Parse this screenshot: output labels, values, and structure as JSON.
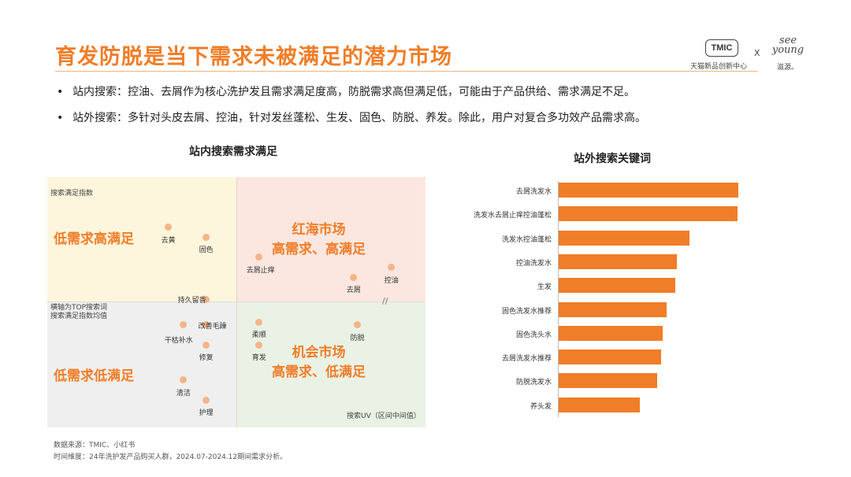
{
  "header": {
    "title": "育发防脱是当下需求未被满足的潜力市场",
    "logo_tmic": "TMIC",
    "logo_tmic_sub": "天猫新品创新中心",
    "logo_x": "X",
    "logo_seeyoung": "see young",
    "logo_seeyoung_sub": "滋源。"
  },
  "bullets": [
    "站内搜索：控油、去屑作为核心洗护发且需求满足度高，防脱需求高但满足低，可能由于产品供给、需求满足不足。",
    "站外搜索：多针对头皮去屑、控油，针对发丝蓬松、生发、固色、防脱、养发。除此，用户对复合多功效产品需求高。"
  ],
  "bullet_marker": "•",
  "colors": {
    "accent": "#f07d28",
    "point": "#f5b588",
    "q_top_left": "#fdf6dc",
    "q_top_right": "#fbe7df",
    "q_bottom_left": "#efefef",
    "q_bottom_right": "#e9f2e4"
  },
  "chart_data": [
    {
      "type": "scatter",
      "title": "站内搜索需求满足",
      "ylabel": "搜索满足指数",
      "xlabel": "搜索UV（区间中间值）",
      "note": "横轴为TOP搜索词\n搜索满足指数均值",
      "break_marker": "//",
      "quadrants": {
        "top_left": "低需求高满足",
        "top_right": "红海市场\n高需求、高满足",
        "bottom_left": "低需求低满足",
        "bottom_right": "机会市场\n高需求、低满足"
      },
      "points": [
        {
          "label": "去黄",
          "x": 0.32,
          "y": 0.8
        },
        {
          "label": "固色",
          "x": 0.42,
          "y": 0.76
        },
        {
          "label": "去屑止痒",
          "x": 0.56,
          "y": 0.68
        },
        {
          "label": "控油",
          "x": 0.91,
          "y": 0.64
        },
        {
          "label": "去屑",
          "x": 0.81,
          "y": 0.6
        },
        {
          "label": "持久留香",
          "x": 0.42,
          "y": 0.51
        },
        {
          "label": "改善毛躁",
          "x": 0.42,
          "y": 0.41
        },
        {
          "label": "干枯补水",
          "x": 0.36,
          "y": 0.41
        },
        {
          "label": "修复",
          "x": 0.42,
          "y": 0.33
        },
        {
          "label": "柔顺",
          "x": 0.56,
          "y": 0.42
        },
        {
          "label": "防脱",
          "x": 0.82,
          "y": 0.41
        },
        {
          "label": "育发",
          "x": 0.56,
          "y": 0.33
        },
        {
          "label": "清洁",
          "x": 0.36,
          "y": 0.19
        },
        {
          "label": "护理",
          "x": 0.42,
          "y": 0.11
        }
      ]
    },
    {
      "type": "bar",
      "orientation": "horizontal",
      "title": "站外搜索关键词",
      "categories": [
        "去屑洗发水",
        "洗发水去屑止痒控油蓬松",
        "洗发水控油蓬松",
        "控油洗发水",
        "生发",
        "固色洗发水推荐",
        "固色洗头水",
        "去屑洗发水推荐",
        "防脱洗发水",
        "养头发"
      ],
      "values": [
        100,
        99.5,
        73,
        66,
        65,
        60,
        58,
        57,
        55,
        45
      ],
      "xlim": [
        0,
        100
      ]
    }
  ],
  "footer": {
    "source": "数据来源：TMIC、小红书",
    "period": "时间维度：24年洗护发产品购买人群，2024.07-2024.12期间需求分析。"
  }
}
